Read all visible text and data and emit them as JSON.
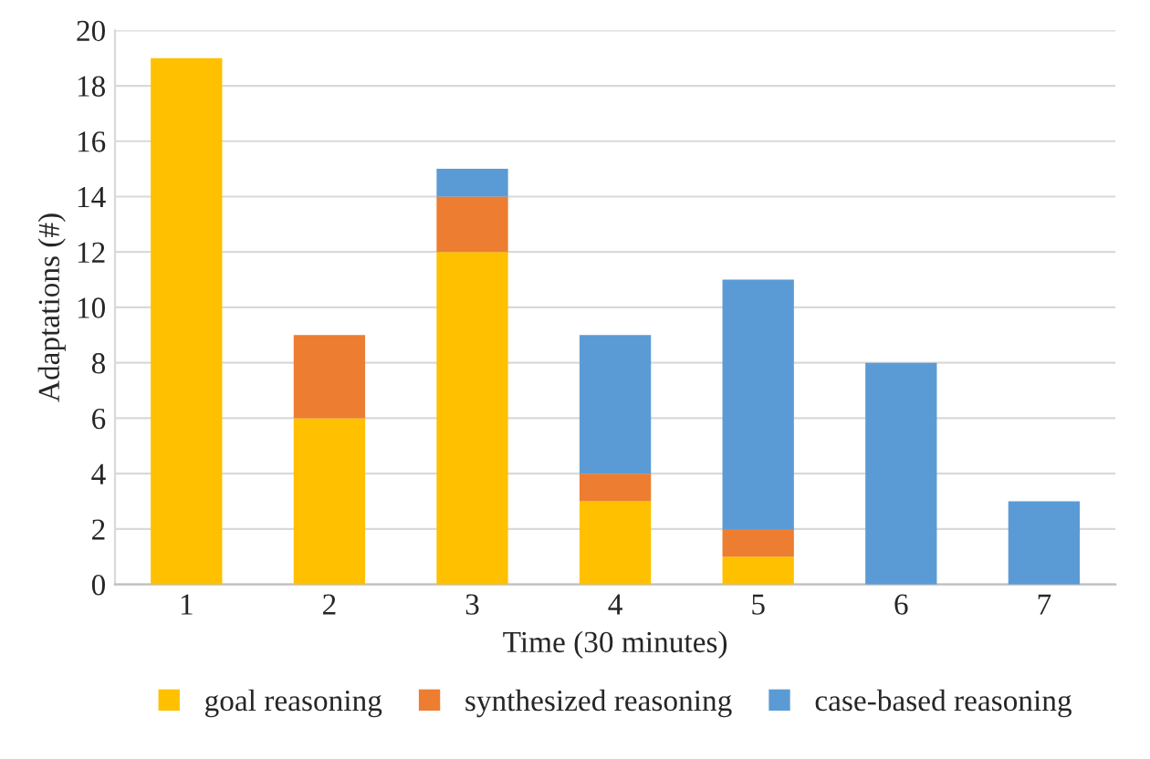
{
  "chart_data": {
    "type": "bar",
    "stacked": true,
    "xlabel": "Time (30 minutes)",
    "ylabel": "Adaptations (#)",
    "categories": [
      "1",
      "2",
      "3",
      "4",
      "5",
      "6",
      "7"
    ],
    "series": [
      {
        "name": "goal reasoning",
        "color": "#ffc000",
        "values": [
          19,
          6,
          12,
          3,
          1,
          0,
          0
        ]
      },
      {
        "name": "synthesized reasoning",
        "color": "#ed7d31",
        "values": [
          0,
          3,
          2,
          1,
          1,
          0,
          0
        ]
      },
      {
        "name": "case-based reasoning",
        "color": "#5b9bd5",
        "values": [
          0,
          0,
          1,
          5,
          9,
          8,
          3
        ]
      }
    ],
    "ylim": [
      0,
      20
    ],
    "yticks": [
      0,
      2,
      4,
      6,
      8,
      10,
      12,
      14,
      16,
      18,
      20
    ],
    "grid": "y",
    "legend": "bottom"
  }
}
